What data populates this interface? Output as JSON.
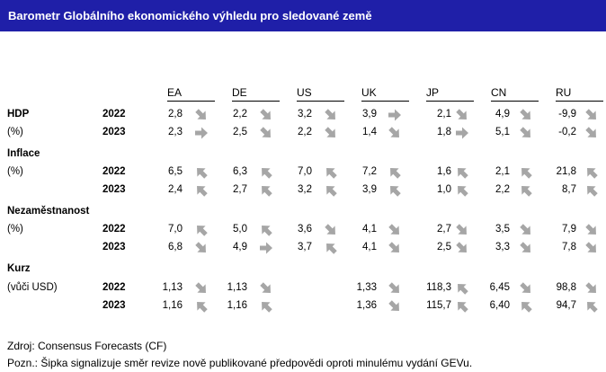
{
  "title": "Barometr Globálního ekonomického výhledu pro sledované země",
  "countries": [
    "EA",
    "DE",
    "US",
    "UK",
    "JP",
    "CN",
    "RU"
  ],
  "sections": [
    {
      "label": "HDP",
      "sublabel": "(%)",
      "rows": [
        {
          "year": "2022",
          "cells": [
            {
              "v": "2,8",
              "a": "down"
            },
            {
              "v": "2,2",
              "a": "down"
            },
            {
              "v": "3,2",
              "a": "down"
            },
            {
              "v": "3,9",
              "a": "right"
            },
            {
              "v": "2,1",
              "a": "down"
            },
            {
              "v": "4,9",
              "a": "down"
            },
            {
              "v": "-9,9",
              "a": "down"
            }
          ]
        },
        {
          "year": "2023",
          "cells": [
            {
              "v": "2,3",
              "a": "right"
            },
            {
              "v": "2,5",
              "a": "down"
            },
            {
              "v": "2,2",
              "a": "down"
            },
            {
              "v": "1,4",
              "a": "down"
            },
            {
              "v": "1,8",
              "a": "right"
            },
            {
              "v": "5,1",
              "a": "down"
            },
            {
              "v": "-0,2",
              "a": "down"
            }
          ]
        }
      ]
    },
    {
      "label": "Inflace",
      "sublabel": "(%)",
      "rows": [
        {
          "year": "2022",
          "cells": [
            {
              "v": "6,5",
              "a": "up"
            },
            {
              "v": "6,3",
              "a": "up"
            },
            {
              "v": "7,0",
              "a": "up"
            },
            {
              "v": "7,2",
              "a": "up"
            },
            {
              "v": "1,6",
              "a": "up"
            },
            {
              "v": "2,1",
              "a": "up"
            },
            {
              "v": "21,8",
              "a": "up"
            }
          ]
        },
        {
          "year": "2023",
          "cells": [
            {
              "v": "2,4",
              "a": "up"
            },
            {
              "v": "2,7",
              "a": "up"
            },
            {
              "v": "3,2",
              "a": "up"
            },
            {
              "v": "3,9",
              "a": "up"
            },
            {
              "v": "1,0",
              "a": "up"
            },
            {
              "v": "2,2",
              "a": "up"
            },
            {
              "v": "8,7",
              "a": "up"
            }
          ]
        }
      ]
    },
    {
      "label": "Nezaměstnanost",
      "sublabel": "(%)",
      "rows": [
        {
          "year": "2022",
          "cells": [
            {
              "v": "7,0",
              "a": "up"
            },
            {
              "v": "5,0",
              "a": "up"
            },
            {
              "v": "3,6",
              "a": "down"
            },
            {
              "v": "4,1",
              "a": "down"
            },
            {
              "v": "2,7",
              "a": "down"
            },
            {
              "v": "3,5",
              "a": "down"
            },
            {
              "v": "7,9",
              "a": "down"
            }
          ]
        },
        {
          "year": "2023",
          "cells": [
            {
              "v": "6,8",
              "a": "down"
            },
            {
              "v": "4,9",
              "a": "right"
            },
            {
              "v": "3,7",
              "a": "up"
            },
            {
              "v": "4,1",
              "a": "down"
            },
            {
              "v": "2,5",
              "a": "down"
            },
            {
              "v": "3,3",
              "a": "down"
            },
            {
              "v": "7,8",
              "a": "down"
            }
          ]
        }
      ]
    },
    {
      "label": "Kurz",
      "sublabel": "(vůči USD)",
      "rows": [
        {
          "year": "2022",
          "cells": [
            {
              "v": "1,13",
              "a": "down"
            },
            {
              "v": "1,13",
              "a": "down"
            },
            {
              "v": "",
              "a": ""
            },
            {
              "v": "1,33",
              "a": "down"
            },
            {
              "v": "118,3",
              "a": "up"
            },
            {
              "v": "6,45",
              "a": "down"
            },
            {
              "v": "98,8",
              "a": "down"
            }
          ]
        },
        {
          "year": "2023",
          "cells": [
            {
              "v": "1,16",
              "a": "up"
            },
            {
              "v": "1,16",
              "a": "up"
            },
            {
              "v": "",
              "a": ""
            },
            {
              "v": "1,36",
              "a": "down"
            },
            {
              "v": "115,7",
              "a": "up"
            },
            {
              "v": "6,40",
              "a": "up"
            },
            {
              "v": "94,7",
              "a": "up"
            }
          ]
        }
      ]
    }
  ],
  "footer": {
    "source": "Zdroj: Consensus Forecasts (CF)",
    "note": "Pozn.: Šipka signalizuje směr revize nově publikované předpovědi oproti minulému vydání GEVu."
  }
}
